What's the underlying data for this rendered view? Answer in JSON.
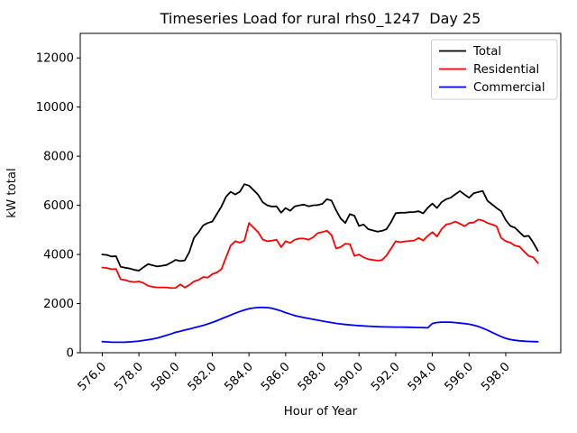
{
  "chart_data": {
    "type": "line",
    "title": "Timeseries Load for rural rhs0_1247  Day 25",
    "xlabel": "Hour of Year",
    "ylabel": "kW total",
    "xlim": [
      574.8,
      601.0
    ],
    "ylim": [
      0,
      13000
    ],
    "grid": false,
    "legend_position": "upper right",
    "legend_border_color": "#cccccc",
    "xticks": [
      {
        "value": 576,
        "label": "576.0"
      },
      {
        "value": 578,
        "label": "578.0"
      },
      {
        "value": 580,
        "label": "580.0"
      },
      {
        "value": 582,
        "label": "582.0"
      },
      {
        "value": 584,
        "label": "584.0"
      },
      {
        "value": 586,
        "label": "586.0"
      },
      {
        "value": 588,
        "label": "588.0"
      },
      {
        "value": 590,
        "label": "590.0"
      },
      {
        "value": 592,
        "label": "592.0"
      },
      {
        "value": 594,
        "label": "594.0"
      },
      {
        "value": 596,
        "label": "596.0"
      },
      {
        "value": 598,
        "label": "598.0"
      }
    ],
    "yticks": [
      {
        "value": 0,
        "label": "0"
      },
      {
        "value": 2000,
        "label": "2000"
      },
      {
        "value": 4000,
        "label": "4000"
      },
      {
        "value": 6000,
        "label": "6000"
      },
      {
        "value": 8000,
        "label": "8000"
      },
      {
        "value": 10000,
        "label": "10000"
      },
      {
        "value": 12000,
        "label": "12000"
      }
    ],
    "x": [
      576.0,
      576.25,
      576.5,
      576.75,
      577.0,
      577.25,
      577.5,
      577.75,
      578.0,
      578.25,
      578.5,
      578.75,
      579.0,
      579.25,
      579.5,
      579.75,
      580.0,
      580.25,
      580.5,
      580.75,
      581.0,
      581.25,
      581.5,
      581.75,
      582.0,
      582.25,
      582.5,
      582.75,
      583.0,
      583.25,
      583.5,
      583.75,
      584.0,
      584.25,
      584.5,
      584.75,
      585.0,
      585.25,
      585.5,
      585.75,
      586.0,
      586.25,
      586.5,
      586.75,
      587.0,
      587.25,
      587.5,
      587.75,
      588.0,
      588.25,
      588.5,
      588.75,
      589.0,
      589.25,
      589.5,
      589.75,
      590.0,
      590.25,
      590.5,
      590.75,
      591.0,
      591.25,
      591.5,
      591.75,
      592.0,
      592.25,
      592.5,
      592.75,
      593.0,
      593.25,
      593.5,
      593.75,
      594.0,
      594.25,
      594.5,
      594.75,
      595.0,
      595.25,
      595.5,
      595.75,
      596.0,
      596.25,
      596.5,
      596.75,
      597.0,
      597.25,
      597.5,
      597.75,
      598.0,
      598.25,
      598.5,
      598.75,
      599.0,
      599.25,
      599.5,
      599.75
    ],
    "series": [
      {
        "name": "Total",
        "color": "#000000",
        "values": [
          4000,
          3980,
          3920,
          3930,
          3500,
          3460,
          3430,
          3370,
          3340,
          3480,
          3610,
          3560,
          3510,
          3540,
          3570,
          3670,
          3780,
          3730,
          3760,
          4100,
          4670,
          4900,
          5180,
          5280,
          5340,
          5650,
          5950,
          6350,
          6550,
          6440,
          6550,
          6860,
          6800,
          6620,
          6430,
          6130,
          6000,
          5950,
          5960,
          5700,
          5890,
          5780,
          5960,
          6000,
          6030,
          5960,
          6000,
          6010,
          6060,
          6250,
          6190,
          5800,
          5460,
          5280,
          5640,
          5580,
          5160,
          5220,
          5030,
          4980,
          4930,
          4960,
          5030,
          5320,
          5680,
          5700,
          5700,
          5720,
          5730,
          5760,
          5670,
          5900,
          6070,
          5890,
          6130,
          6250,
          6310,
          6450,
          6580,
          6440,
          6310,
          6490,
          6540,
          6580,
          6190,
          6040,
          5890,
          5760,
          5400,
          5160,
          5090,
          4910,
          4730,
          4760,
          4480,
          4150
        ]
      },
      {
        "name": "Residential",
        "color": "#ff0000",
        "values": [
          3470,
          3450,
          3400,
          3410,
          2990,
          2960,
          2900,
          2880,
          2900,
          2840,
          2720,
          2680,
          2660,
          2660,
          2660,
          2630,
          2640,
          2780,
          2650,
          2760,
          2900,
          2960,
          3080,
          3060,
          3200,
          3270,
          3400,
          3880,
          4360,
          4540,
          4480,
          4560,
          5280,
          5090,
          4910,
          4610,
          4540,
          4560,
          4600,
          4300,
          4540,
          4470,
          4600,
          4650,
          4650,
          4600,
          4700,
          4870,
          4910,
          4970,
          4790,
          4240,
          4300,
          4440,
          4420,
          3940,
          4000,
          3880,
          3810,
          3780,
          3750,
          3770,
          3960,
          4240,
          4540,
          4500,
          4530,
          4550,
          4570,
          4670,
          4570,
          4760,
          4910,
          4730,
          5030,
          5220,
          5260,
          5340,
          5250,
          5150,
          5280,
          5300,
          5420,
          5380,
          5280,
          5220,
          5150,
          4670,
          4540,
          4480,
          4360,
          4320,
          4120,
          3940,
          3880,
          3650
        ]
      },
      {
        "name": "Commercial",
        "color": "#0000ff",
        "values": [
          450,
          440,
          430,
          425,
          425,
          430,
          440,
          455,
          475,
          500,
          530,
          560,
          595,
          650,
          705,
          765,
          830,
          875,
          920,
          965,
          1015,
          1060,
          1110,
          1170,
          1235,
          1305,
          1380,
          1455,
          1530,
          1610,
          1680,
          1740,
          1790,
          1820,
          1840,
          1845,
          1835,
          1810,
          1760,
          1700,
          1630,
          1570,
          1510,
          1470,
          1430,
          1395,
          1360,
          1325,
          1290,
          1255,
          1225,
          1195,
          1170,
          1150,
          1130,
          1115,
          1100,
          1090,
          1080,
          1070,
          1062,
          1055,
          1050,
          1047,
          1044,
          1042,
          1040,
          1035,
          1030,
          1025,
          1020,
          1015,
          1190,
          1230,
          1245,
          1245,
          1240,
          1225,
          1205,
          1185,
          1160,
          1120,
          1070,
          1000,
          920,
          830,
          740,
          655,
          585,
          535,
          505,
          485,
          470,
          460,
          452,
          448
        ]
      }
    ]
  }
}
